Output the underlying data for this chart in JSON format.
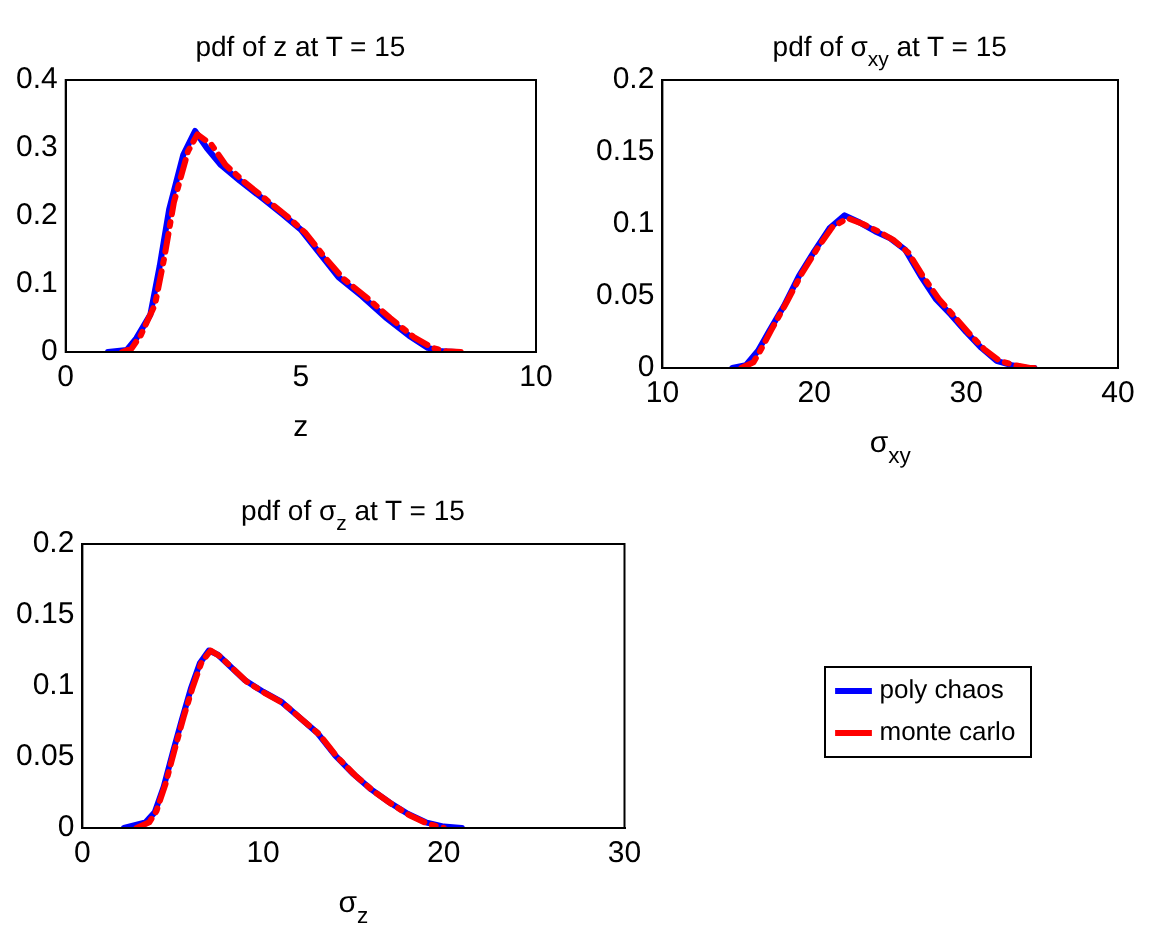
{
  "chart_data": [
    {
      "type": "line",
      "title": "pdf of z at T = 15",
      "xlabel": "z",
      "xlim": [
        0,
        10
      ],
      "xticks": [
        0,
        5,
        10
      ],
      "ylim": [
        0,
        0.4
      ],
      "yticks": [
        0,
        0.1,
        0.2,
        0.3,
        0.4
      ],
      "grid": false,
      "legend": false,
      "marker": "none",
      "series": [
        {
          "color": "#0000ff",
          "line_style": "solid",
          "x": [
            0.9,
            1.3,
            1.5,
            1.8,
            2.0,
            2.2,
            2.5,
            2.75,
            3.0,
            3.3,
            3.7,
            4.2,
            4.6,
            5.0,
            5.4,
            5.8,
            6.3,
            6.8,
            7.3,
            7.7,
            8.0,
            8.3
          ],
          "values": [
            0,
            0.003,
            0.02,
            0.055,
            0.127,
            0.21,
            0.29,
            0.325,
            0.3,
            0.275,
            0.252,
            0.225,
            0.203,
            0.18,
            0.145,
            0.11,
            0.082,
            0.051,
            0.024,
            0.006,
            0.001,
            0
          ]
        },
        {
          "color": "#ff0000",
          "line_style": "dashed",
          "x": [
            1.2,
            1.4,
            1.6,
            1.9,
            2.1,
            2.3,
            2.6,
            2.8,
            3.1,
            3.4,
            3.8,
            4.3,
            4.7,
            5.1,
            5.5,
            5.9,
            6.4,
            6.9,
            7.4,
            7.8,
            8.1,
            8.4
          ],
          "values": [
            0,
            0.005,
            0.025,
            0.07,
            0.14,
            0.22,
            0.295,
            0.32,
            0.305,
            0.275,
            0.25,
            0.222,
            0.2,
            0.175,
            0.14,
            0.108,
            0.08,
            0.05,
            0.022,
            0.006,
            0.001,
            0
          ]
        }
      ]
    },
    {
      "type": "line",
      "title": "pdf of σ$_{xy}$ at T = 15",
      "xlabel": "σ$_{xy}$",
      "xlim": [
        10,
        40
      ],
      "xticks": [
        10,
        20,
        30,
        40
      ],
      "ylim": [
        0,
        0.2
      ],
      "yticks": [
        0,
        0.05,
        0.1,
        0.15,
        0.2
      ],
      "grid": false,
      "legend": false,
      "marker": "none",
      "series": [
        {
          "color": "#0000ff",
          "line_style": "solid",
          "x": [
            14.6,
            15.5,
            16.3,
            17,
            18,
            19,
            20,
            21,
            22,
            23,
            24,
            25,
            26,
            27,
            28,
            29,
            30,
            31,
            32,
            33,
            34,
            34.5
          ],
          "values": [
            0,
            0.002,
            0.012,
            0.025,
            0.043,
            0.064,
            0.081,
            0.097,
            0.106,
            0.101,
            0.095,
            0.09,
            0.082,
            0.064,
            0.048,
            0.037,
            0.025,
            0.014,
            0.005,
            0.002,
            0,
            0
          ]
        },
        {
          "color": "#ff0000",
          "line_style": "dashed",
          "x": [
            15.2,
            16,
            16.5,
            17.2,
            18.2,
            19.2,
            20.2,
            21.2,
            22.2,
            23.2,
            24.2,
            25.2,
            26.2,
            27.2,
            28.2,
            29.2,
            30.2,
            31.2,
            32.2,
            33.2,
            34.2,
            34.8
          ],
          "values": [
            0,
            0.004,
            0.013,
            0.027,
            0.046,
            0.066,
            0.083,
            0.098,
            0.104,
            0.1,
            0.095,
            0.089,
            0.08,
            0.063,
            0.048,
            0.036,
            0.024,
            0.013,
            0.005,
            0.002,
            0,
            0
          ]
        }
      ]
    },
    {
      "type": "line",
      "title": "pdf of σ$_{z}$ at T = 15",
      "xlabel": "σ$_{z}$",
      "xlim": [
        0,
        30
      ],
      "xticks": [
        0,
        10,
        20,
        30
      ],
      "ylim": [
        0,
        0.2
      ],
      "yticks": [
        0,
        0.05,
        0.1,
        0.15,
        0.2
      ],
      "grid": false,
      "legend": "right",
      "marker": "none",
      "series": [
        {
          "name": "poly chaos",
          "color": "#0000ff",
          "line_style": "solid",
          "x": [
            2.3,
            3.5,
            4,
            4.5,
            5,
            5.5,
            6,
            6.5,
            7,
            7.5,
            8,
            9,
            10,
            11,
            12,
            13,
            14,
            15,
            16,
            17,
            18,
            19,
            20,
            21
          ],
          "values": [
            0,
            0.004,
            0.011,
            0.029,
            0.053,
            0.076,
            0.098,
            0.116,
            0.125,
            0.122,
            0.116,
            0.104,
            0.096,
            0.089,
            0.078,
            0.067,
            0.051,
            0.038,
            0.027,
            0.018,
            0.01,
            0.004,
            0.001,
            0
          ]
        },
        {
          "name": "monte carlo",
          "color": "#ff0000",
          "line_style": "dashed",
          "x": [
            3,
            3.7,
            4.1,
            4.6,
            5.1,
            5.6,
            6.1,
            6.6,
            7.1,
            7.6,
            8.1,
            9.1,
            10.1,
            11.1,
            12.1,
            13.1,
            14.1,
            15.1,
            16.1,
            17.1,
            18.1,
            19.1,
            20
          ],
          "values": [
            0,
            0.004,
            0.012,
            0.031,
            0.055,
            0.078,
            0.099,
            0.117,
            0.125,
            0.121,
            0.115,
            0.103,
            0.095,
            0.088,
            0.077,
            0.066,
            0.05,
            0.037,
            0.026,
            0.017,
            0.009,
            0.003,
            0
          ]
        }
      ]
    }
  ]
}
